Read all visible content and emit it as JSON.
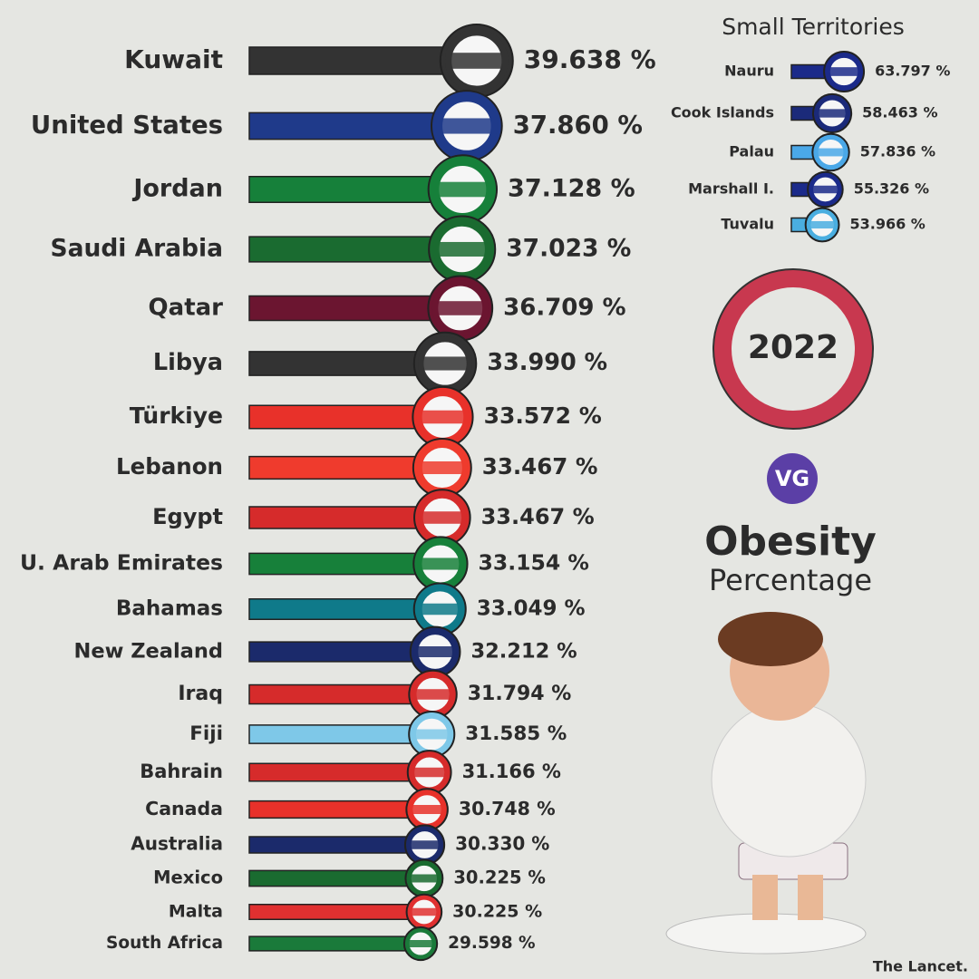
{
  "chart_data": [
    {
      "type": "bar",
      "categories": [
        "Kuwait",
        "United States",
        "Jordan",
        "Saudi Arabia",
        "Qatar",
        "Libya",
        "Türkiye",
        "Lebanon",
        "Egypt",
        "U. Arab Emirates",
        "Bahamas",
        "New Zealand",
        "Iraq",
        "Fiji",
        "Bahrain",
        "Canada",
        "Australia",
        "Mexico",
        "Malta",
        "South Africa"
      ],
      "values": [
        39.638,
        37.86,
        37.128,
        37.023,
        36.709,
        33.99,
        33.572,
        33.467,
        33.467,
        33.154,
        33.049,
        32.212,
        31.794,
        31.585,
        31.166,
        30.748,
        30.33,
        30.225,
        30.225,
        29.598
      ],
      "value_labels": [
        "39.638 %",
        "37.860 %",
        "37.128 %",
        "37.023 %",
        "36.709 %",
        "33.990 %",
        "33.572 %",
        "33.467 %",
        "33.467 %",
        "33.154 %",
        "33.049 %",
        "32.212 %",
        "31.794 %",
        "31.585 %",
        "31.166 %",
        "30.748 %",
        "30.330 %",
        "30.225 %",
        "30.225 %",
        "29.598 %"
      ],
      "colors": [
        "#333333",
        "#1f3a8a",
        "#16803a",
        "#1a6b30",
        "#6b1530",
        "#333333",
        "#e8312a",
        "#ef3b2d",
        "#d62b2b",
        "#17803a",
        "#0f7a8a",
        "#1b2a6b",
        "#d62b2b",
        "#7ec8e8",
        "#d62b2b",
        "#e8312a",
        "#1b2a6b",
        "#1a6b30",
        "#e03030",
        "#1a7a3a"
      ],
      "xlim": [
        0,
        40
      ]
    },
    {
      "type": "bar",
      "title": "Small Territories",
      "categories": [
        "Nauru",
        "Cook Islands",
        "Palau",
        "Marshall I.",
        "Tuvalu"
      ],
      "values": [
        63.797,
        58.463,
        57.836,
        55.326,
        53.966
      ],
      "value_labels": [
        "63.797 %",
        "58.463 %",
        "57.836 %",
        "55.326 %",
        "53.966 %"
      ],
      "colors": [
        "#1b2a8a",
        "#1b2a7a",
        "#4aa8e8",
        "#1b2a8a",
        "#4aaee0"
      ],
      "xlim": [
        40,
        65
      ]
    }
  ],
  "year": "2022",
  "logo": "VG",
  "title": "Obesity",
  "subtitle": "Percentage",
  "source": "The Lancet."
}
